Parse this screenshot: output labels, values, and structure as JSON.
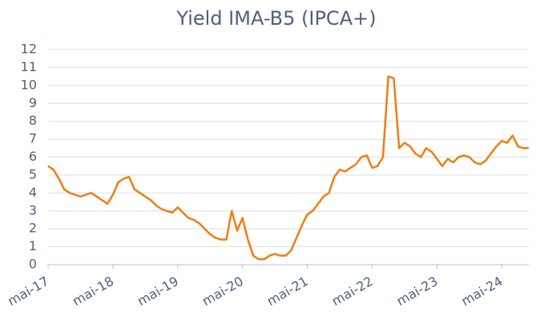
{
  "chart_data": {
    "type": "line",
    "title": "Yield IMA-B5 (IPCA+)",
    "x": [
      "2017-05",
      "2017-06",
      "2017-07",
      "2017-08",
      "2017-09",
      "2017-10",
      "2017-11",
      "2017-12",
      "2018-01",
      "2018-02",
      "2018-03",
      "2018-04",
      "2018-05",
      "2018-06",
      "2018-07",
      "2018-08",
      "2018-09",
      "2018-10",
      "2018-11",
      "2018-12",
      "2019-01",
      "2019-02",
      "2019-03",
      "2019-04",
      "2019-05",
      "2019-06",
      "2019-07",
      "2019-08",
      "2019-09",
      "2019-10",
      "2019-11",
      "2019-12",
      "2020-01",
      "2020-02",
      "2020-03",
      "2020-04",
      "2020-05",
      "2020-06",
      "2020-07",
      "2020-08",
      "2020-09",
      "2020-10",
      "2020-11",
      "2020-12",
      "2021-01",
      "2021-02",
      "2021-03",
      "2021-04",
      "2021-05",
      "2021-06",
      "2021-07",
      "2021-08",
      "2021-09",
      "2021-10",
      "2021-11",
      "2021-12",
      "2022-01",
      "2022-02",
      "2022-03",
      "2022-04",
      "2022-05",
      "2022-06",
      "2022-07",
      "2022-08",
      "2022-09",
      "2022-10",
      "2022-11",
      "2022-12",
      "2023-01",
      "2023-02",
      "2023-03",
      "2023-04",
      "2023-05",
      "2023-06",
      "2023-07",
      "2023-08",
      "2023-09",
      "2023-10",
      "2023-11",
      "2023-12",
      "2024-01",
      "2024-02",
      "2024-03",
      "2024-04",
      "2024-05",
      "2024-06",
      "2024-07",
      "2024-08",
      "2024-09",
      "2024-10"
    ],
    "series": [
      {
        "name": "Yield IMA-B5",
        "color": "#f07d14",
        "values": [
          5.5,
          5.3,
          4.8,
          4.2,
          4.0,
          3.9,
          3.8,
          3.9,
          4.0,
          3.8,
          3.6,
          3.4,
          3.9,
          4.6,
          4.8,
          4.9,
          4.2,
          4.0,
          3.8,
          3.6,
          3.3,
          3.1,
          3.0,
          2.9,
          3.2,
          2.9,
          2.6,
          2.5,
          2.3,
          2.0,
          1.7,
          1.5,
          1.4,
          1.4,
          3.0,
          1.9,
          2.6,
          1.4,
          0.5,
          0.3,
          0.3,
          0.5,
          0.6,
          0.5,
          0.5,
          0.8,
          1.5,
          2.2,
          2.8,
          3.0,
          3.4,
          3.8,
          4.0,
          4.9,
          5.3,
          5.2,
          5.4,
          5.6,
          6.0,
          6.1,
          5.4,
          5.5,
          6.0,
          10.5,
          10.4,
          6.5,
          6.8,
          6.6,
          6.2,
          6.0,
          6.5,
          6.3,
          5.9,
          5.5,
          5.9,
          5.7,
          6.0,
          6.1,
          6.0,
          5.7,
          5.6,
          5.8,
          6.2,
          6.6,
          6.9,
          6.8,
          7.2,
          6.6,
          6.5,
          6.5
        ]
      }
    ],
    "xlim": [
      "2017-05",
      "2024-10"
    ],
    "xticks": [
      {
        "value": "2017-05",
        "label": "mai-17"
      },
      {
        "value": "2018-05",
        "label": "mai-18"
      },
      {
        "value": "2019-05",
        "label": "mai-19"
      },
      {
        "value": "2020-05",
        "label": "mai-20"
      },
      {
        "value": "2021-05",
        "label": "mai-21"
      },
      {
        "value": "2022-05",
        "label": "mai-22"
      },
      {
        "value": "2023-05",
        "label": "mai-23"
      },
      {
        "value": "2024-05",
        "label": "mai-24"
      }
    ],
    "ylim": [
      0,
      12
    ],
    "yticks": [
      0,
      1,
      2,
      3,
      4,
      5,
      6,
      7,
      8,
      9,
      10,
      11,
      12
    ],
    "grid": true
  }
}
